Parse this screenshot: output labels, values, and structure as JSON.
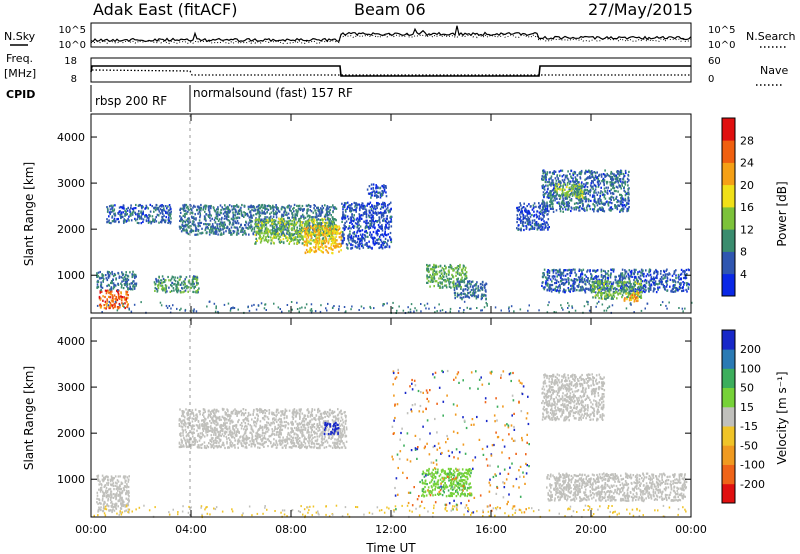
{
  "header": {
    "station": "Adak East (fitACF)",
    "beam": "Beam 06",
    "date": "27/May/2015"
  },
  "left_labels": {
    "nsky": "N.Sky",
    "freq_line1": "Freq.",
    "freq_line2": "[MHz]",
    "cpid": "CPID"
  },
  "right_labels": {
    "nsearch": "N.Search",
    "nave": "Nave"
  },
  "strip_ticks": {
    "noise_left_top": "10^5",
    "noise_left_bot": "10^0",
    "noise_right_top": "10^5",
    "noise_right_bot": "10^0",
    "freq_left_top": "18",
    "freq_left_bot": "8",
    "freq_right_top": "60",
    "freq_right_bot": "0"
  },
  "cpid_segments": [
    "rbsp 200 RF",
    "normalsound (fast) 157 RF"
  ],
  "axes": {
    "ylabel": "Slant Range [km]",
    "xlabel": "Time UT",
    "yticks": [
      "1000",
      "2000",
      "3000",
      "4000"
    ],
    "xticks": [
      "00:00",
      "04:00",
      "08:00",
      "12:00",
      "16:00",
      "20:00",
      "00:00"
    ]
  },
  "colorbars": {
    "power_label": "Power [dB]",
    "power_ticks": [
      "4",
      "8",
      "12",
      "16",
      "20",
      "24",
      "28"
    ],
    "power_colors": [
      "#0a28e6",
      "#2f56b0",
      "#3a8c6e",
      "#7cc23a",
      "#f0e018",
      "#f5a016",
      "#f06010",
      "#e01010"
    ],
    "velocity_label": "Velocity [m s⁻¹]",
    "velocity_ticks": [
      "200",
      "100",
      "50",
      "15",
      "-15",
      "-50",
      "-100",
      "-200"
    ],
    "velocity_colors": [
      "#1828c8",
      "#2a7ab4",
      "#3cae5c",
      "#76d238",
      "#c0c0bc",
      "#f0c428",
      "#f09a20",
      "#ef6418",
      "#e01010"
    ]
  },
  "chart_data": {
    "type": "heatmap",
    "x_range": [
      "00:00",
      "24:00"
    ],
    "y_range_km": [
      180,
      4500
    ],
    "cpid_switch_time": "03:50",
    "freq_step_times": [
      "10:00",
      "18:00"
    ],
    "power_regions": [
      {
        "t0": 0.3,
        "t1": 1.5,
        "r0": 300,
        "r1": 700,
        "db": 26
      },
      {
        "t0": 0.2,
        "t1": 1.8,
        "r0": 700,
        "r1": 1100,
        "db": 8
      },
      {
        "t0": 0.6,
        "t1": 3.2,
        "r0": 2150,
        "r1": 2550,
        "db": 6
      },
      {
        "t0": 2.5,
        "t1": 4.3,
        "r0": 650,
        "r1": 1000,
        "db": 10
      },
      {
        "t0": 3.5,
        "t1": 9.8,
        "r0": 1900,
        "r1": 2550,
        "db": 8
      },
      {
        "t0": 6.5,
        "t1": 9.8,
        "r0": 1700,
        "r1": 2250,
        "db": 14
      },
      {
        "t0": 8.5,
        "t1": 10.0,
        "r0": 1500,
        "r1": 2100,
        "db": 20
      },
      {
        "t0": 10.0,
        "t1": 12.0,
        "r0": 1600,
        "r1": 2600,
        "db": 5
      },
      {
        "t0": 11.0,
        "t1": 11.8,
        "r0": 2700,
        "r1": 3000,
        "db": 5
      },
      {
        "t0": 13.4,
        "t1": 15.0,
        "r0": 750,
        "r1": 1250,
        "db": 12
      },
      {
        "t0": 14.5,
        "t1": 15.8,
        "r0": 500,
        "r1": 900,
        "db": 8
      },
      {
        "t0": 17.0,
        "t1": 18.3,
        "r0": 2000,
        "r1": 2600,
        "db": 5
      },
      {
        "t0": 18.0,
        "t1": 21.5,
        "r0": 2400,
        "r1": 3300,
        "db": 7
      },
      {
        "t0": 18.5,
        "t1": 19.7,
        "r0": 2700,
        "r1": 3000,
        "db": 14
      },
      {
        "t0": 18.0,
        "t1": 23.9,
        "r0": 650,
        "r1": 1150,
        "db": 6
      },
      {
        "t0": 20.0,
        "t1": 22.0,
        "r0": 500,
        "r1": 900,
        "db": 13
      },
      {
        "t0": 21.3,
        "t1": 21.9,
        "r0": 450,
        "r1": 650,
        "db": 22
      }
    ],
    "velocity_regions": [
      {
        "t0": 0.2,
        "t1": 1.5,
        "r0": 300,
        "r1": 1100,
        "v": 0
      },
      {
        "t0": 3.5,
        "t1": 10.2,
        "r0": 1700,
        "r1": 2550,
        "v": 0
      },
      {
        "t0": 9.3,
        "t1": 9.9,
        "r0": 2000,
        "r1": 2250,
        "v": 220
      },
      {
        "t0": 13.2,
        "t1": 15.2,
        "r0": 650,
        "r1": 1250,
        "v": 40
      },
      {
        "t0": 18.0,
        "t1": 20.5,
        "r0": 2300,
        "r1": 3300,
        "v": 0
      },
      {
        "t0": 18.2,
        "t1": 23.8,
        "r0": 550,
        "r1": 1150,
        "v": 0
      },
      {
        "t0": 12.0,
        "t1": 17.5,
        "r0": 300,
        "r1": 3400,
        "v": -60
      }
    ]
  }
}
